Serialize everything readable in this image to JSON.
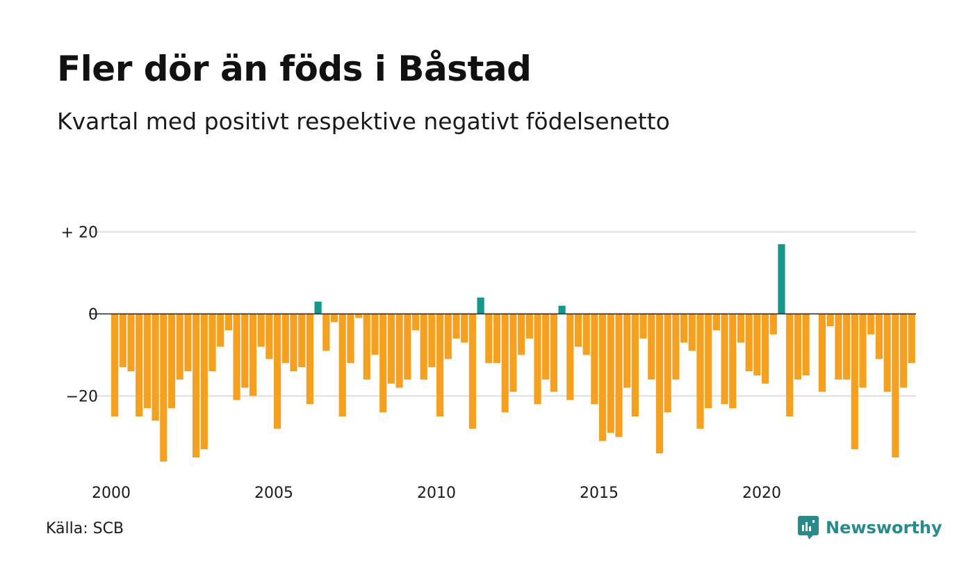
{
  "title": "Fler dör än föds i Båstad",
  "subtitle": "Kvartal med positivt respektive negativt födelsenetto",
  "source": "Källa: SCB",
  "brand": "Newsworthy",
  "colors": {
    "negative": "#f5a01e",
    "positive": "#17968a",
    "grid": "#dddddd",
    "zero_line": "#222222",
    "brand": "#2a8a8a"
  },
  "chart_data": {
    "type": "bar",
    "xlabel": "",
    "ylabel": "",
    "ylim": [
      -40,
      25
    ],
    "y_ticks": [
      {
        "value": 20,
        "label": "+ 20"
      },
      {
        "value": 0,
        "label": "0"
      },
      {
        "value": -20,
        "label": "−20"
      }
    ],
    "x_ticks": [
      {
        "label": "2000",
        "index": 0
      },
      {
        "label": "2005",
        "index": 20
      },
      {
        "label": "2010",
        "index": 40
      },
      {
        "label": "2015",
        "index": 60
      },
      {
        "label": "2020",
        "index": 80
      }
    ],
    "period_start": "2000 Q1",
    "frequency": "quarterly",
    "values": [
      -25,
      -13,
      -14,
      -25,
      -23,
      -26,
      -36,
      -23,
      -16,
      -14,
      -35,
      -33,
      -14,
      -8,
      -4,
      -21,
      -18,
      -20,
      -8,
      -11,
      -28,
      -12,
      -14,
      -13,
      -22,
      3,
      -9,
      -2,
      -25,
      -12,
      -1,
      -16,
      -10,
      -24,
      -17,
      -18,
      -16,
      -4,
      -16,
      -13,
      -25,
      -11,
      -6,
      -7,
      -28,
      4,
      -12,
      -12,
      -24,
      -19,
      -10,
      -6,
      -22,
      -16,
      -19,
      2,
      -21,
      -8,
      -10,
      -22,
      -31,
      -29,
      -30,
      -18,
      -25,
      -6,
      -16,
      -34,
      -24,
      -16,
      -7,
      -9,
      -28,
      -23,
      -4,
      -22,
      -23,
      -7,
      -14,
      -15,
      -17,
      -5,
      17,
      -25,
      -16,
      -15,
      0,
      -19,
      -3,
      -16,
      -16,
      -33,
      -18,
      -5,
      -11,
      -19,
      -35,
      -18,
      -12
    ]
  }
}
